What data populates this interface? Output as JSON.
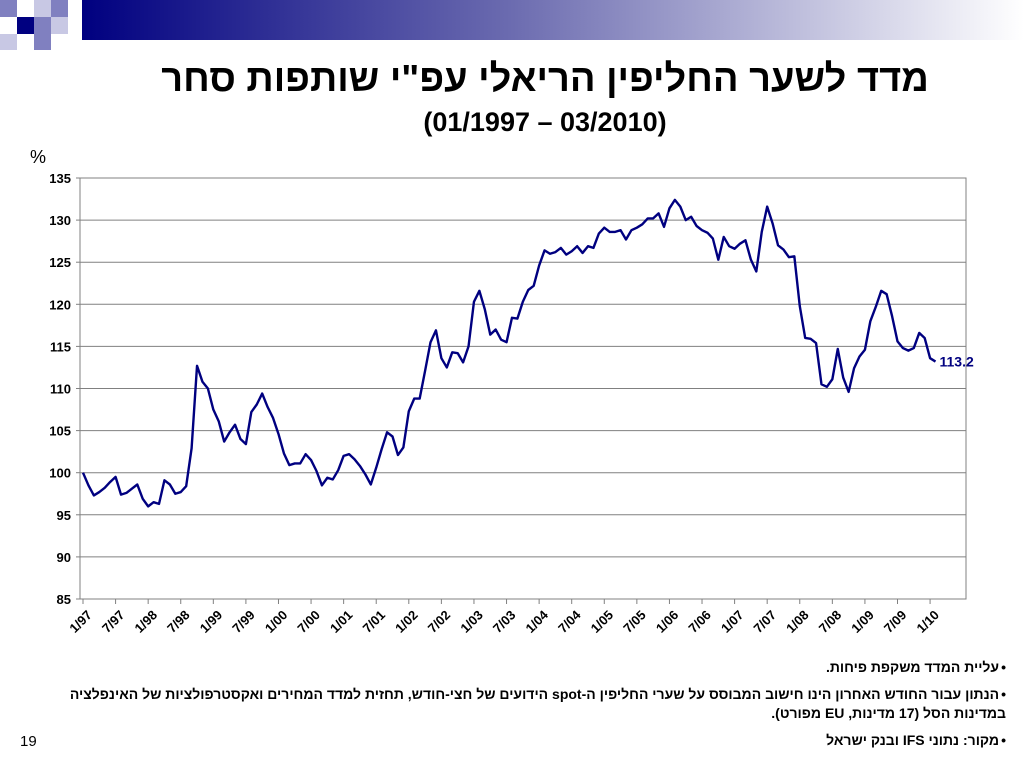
{
  "slide": {
    "title": "מדד לשער החליפין הריאלי עפ\"י שותפות סחר",
    "subtitle": "(01/1997 – 03/2010)",
    "unit_label": "%",
    "notes": [
      "עליית המדד משקפת פיחות.",
      "הנתון עבור החודש האחרון הינו חישוב המבוסס על שערי החליפין ה-spot הידועים של חצי-חודש, תחזית למדד המחירים ואקסטרפולציות של האינפלציה במדינות הסל (17 מדינות, EU מפורט).",
      "מקור: נתוני IFS ובנק ישראל"
    ],
    "slide_number": "19"
  },
  "colors": {
    "series": "#000080",
    "deco_dark": "#1a1a8a",
    "deco_mid": "#8080c0",
    "deco_light": "#c8c8e4",
    "last_value_label": "#000080"
  },
  "chart_data": {
    "type": "line",
    "title": "מדד לשער החליפין הריאלי עפ\"י שותפות סחר",
    "subtitle": "(01/1997 – 03/2010)",
    "ylabel": "%",
    "ylim": [
      85,
      135
    ],
    "yticks": [
      85,
      90,
      95,
      100,
      105,
      110,
      115,
      120,
      125,
      130,
      135
    ],
    "x_tick_labels": [
      "1/97",
      "7/97",
      "1/98",
      "7/98",
      "1/99",
      "7/99",
      "1/00",
      "7/00",
      "1/01",
      "7/01",
      "1/02",
      "7/02",
      "1/03",
      "7/03",
      "1/04",
      "7/04",
      "1/05",
      "7/05",
      "1/06",
      "7/06",
      "1/07",
      "7/07",
      "1/08",
      "7/08",
      "1/09",
      "7/09",
      "1/10"
    ],
    "grid": "horizontal",
    "last_value_label": "113.2",
    "series": [
      {
        "start": "1997-01",
        "frequency": "monthly",
        "values": [
          100.0,
          98.5,
          97.3,
          97.7,
          98.2,
          98.9,
          99.5,
          97.4,
          97.6,
          98.1,
          98.6,
          96.9,
          96.0,
          96.5,
          96.3,
          99.1,
          98.6,
          97.5,
          97.7,
          98.4,
          102.9,
          112.7,
          110.8,
          110.0,
          107.5,
          106.1,
          103.7,
          104.8,
          105.7,
          104.0,
          103.4,
          107.2,
          108.1,
          109.4,
          107.8,
          106.5,
          104.6,
          102.3,
          100.9,
          101.1,
          101.1,
          102.2,
          101.5,
          100.2,
          98.5,
          99.4,
          99.2,
          100.3,
          102.0,
          102.2,
          101.6,
          100.8,
          99.8,
          98.6,
          100.6,
          102.8,
          104.8,
          104.3,
          102.1,
          103.0,
          107.3,
          108.8,
          108.8,
          112.1,
          115.5,
          116.9,
          113.6,
          112.5,
          114.3,
          114.2,
          113.1,
          115.0,
          120.3,
          121.6,
          119.4,
          116.4,
          117.0,
          115.8,
          115.5,
          118.4,
          118.3,
          120.3,
          121.7,
          122.2,
          124.6,
          126.4,
          126.0,
          126.2,
          126.7,
          125.9,
          126.3,
          126.9,
          126.1,
          126.9,
          126.7,
          128.4,
          129.1,
          128.6,
          128.6,
          128.8,
          127.7,
          128.8,
          129.1,
          129.5,
          130.2,
          130.2,
          130.8,
          129.2,
          131.4,
          132.4,
          131.6,
          130.0,
          130.4,
          129.3,
          128.8,
          128.5,
          127.8,
          125.3,
          128.0,
          126.9,
          126.6,
          127.2,
          127.6,
          125.3,
          123.9,
          128.6,
          131.6,
          129.6,
          127.0,
          126.5,
          125.6,
          125.7,
          119.8,
          116.0,
          115.9,
          115.4,
          110.5,
          110.2,
          111.1,
          114.7,
          111.3,
          109.6,
          112.4,
          113.8,
          114.6,
          118.0,
          119.7,
          121.6,
          121.2,
          118.6,
          115.6,
          114.8,
          114.5,
          114.8,
          116.6,
          116.0,
          113.6,
          113.2
        ]
      }
    ]
  }
}
